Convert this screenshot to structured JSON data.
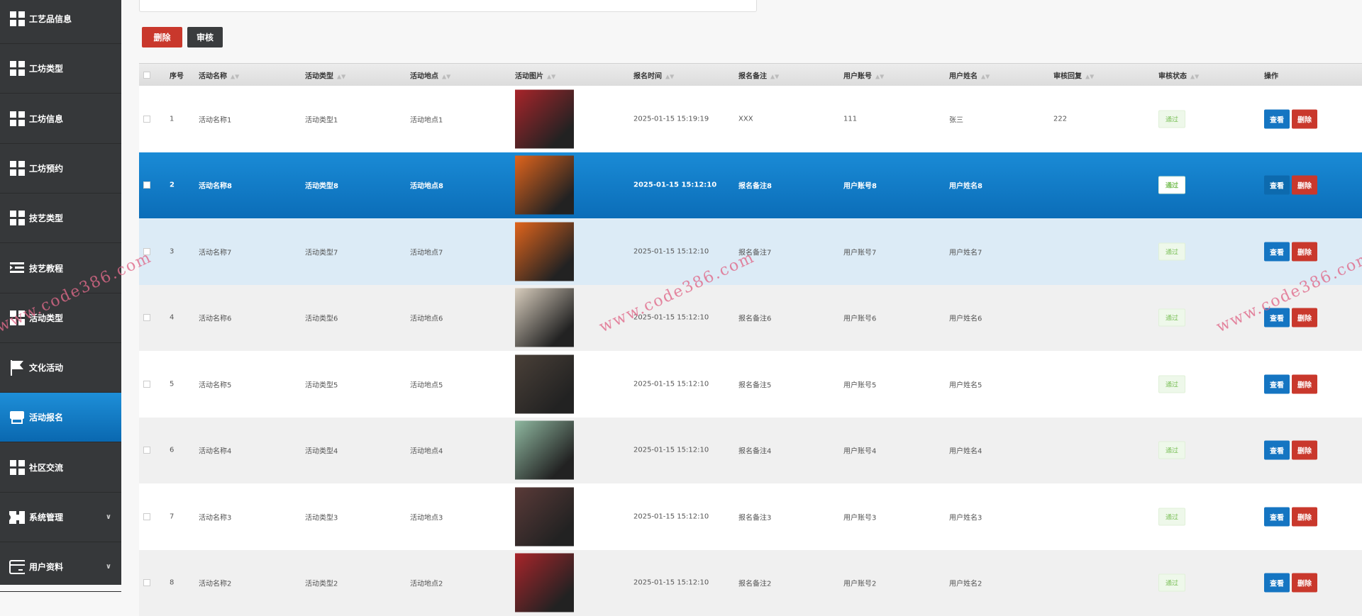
{
  "sidebar": {
    "items": [
      {
        "label": "工艺品信息",
        "icon": "grid"
      },
      {
        "label": "工坊类型",
        "icon": "grid"
      },
      {
        "label": "工坊信息",
        "icon": "grid"
      },
      {
        "label": "工坊预约",
        "icon": "grid"
      },
      {
        "label": "技艺类型",
        "icon": "grid"
      },
      {
        "label": "技艺教程",
        "icon": "list-indent"
      },
      {
        "label": "活动类型",
        "icon": "grid"
      },
      {
        "label": "文化活动",
        "icon": "flag"
      },
      {
        "label": "活动报名",
        "icon": "store",
        "active": true
      },
      {
        "label": "社区交流",
        "icon": "grid"
      },
      {
        "label": "系统管理",
        "icon": "ticket",
        "expandable": true
      },
      {
        "label": "用户资料",
        "icon": "card",
        "expandable": true
      }
    ]
  },
  "toolbar": {
    "delete_label": "删除",
    "review_label": "审核",
    "delete_color": "#c9382c",
    "review_color": "#3a3c3e"
  },
  "table": {
    "headers": [
      "序号",
      "活动名称",
      "活动类型",
      "活动地点",
      "活动图片",
      "报名时间",
      "报名备注",
      "用户账号",
      "用户姓名",
      "审核回复",
      "审核状态",
      "操作"
    ],
    "actions": {
      "view": "查看",
      "delete": "删除"
    },
    "rows": [
      {
        "no": "1",
        "name": "活动名称1",
        "type": "活动类型1",
        "place": "活动地点1",
        "img": "#a8242a",
        "time": "2025-01-15 15:19:19",
        "note": "XXX",
        "account": "111",
        "user": "张三",
        "reply": "222",
        "status": "通过"
      },
      {
        "no": "2",
        "name": "活动名称8",
        "type": "活动类型8",
        "place": "活动地点8",
        "img": "#e0641c",
        "time": "2025-01-15 15:12:10",
        "note": "报名备注8",
        "account": "用户账号8",
        "user": "用户姓名8",
        "reply": "",
        "status": "通过",
        "selected": true
      },
      {
        "no": "3",
        "name": "活动名称7",
        "type": "活动类型7",
        "place": "活动地点7",
        "img": "#e0641c",
        "time": "2025-01-15 15:12:10",
        "note": "报名备注7",
        "account": "用户账号7",
        "user": "用户姓名7",
        "reply": "",
        "status": "通过"
      },
      {
        "no": "4",
        "name": "活动名称6",
        "type": "活动类型6",
        "place": "活动地点6",
        "img": "#d8cdbd",
        "time": "2025-01-15 15:12:10",
        "note": "报名备注6",
        "account": "用户账号6",
        "user": "用户姓名6",
        "reply": "",
        "status": "通过"
      },
      {
        "no": "5",
        "name": "活动名称5",
        "type": "活动类型5",
        "place": "活动地点5",
        "img": "#4a4038",
        "time": "2025-01-15 15:12:10",
        "note": "报名备注5",
        "account": "用户账号5",
        "user": "用户姓名5",
        "reply": "",
        "status": "通过"
      },
      {
        "no": "6",
        "name": "活动名称4",
        "type": "活动类型4",
        "place": "活动地点4",
        "img": "#8fb8a0",
        "time": "2025-01-15 15:12:10",
        "note": "报名备注4",
        "account": "用户账号4",
        "user": "用户姓名4",
        "reply": "",
        "status": "通过"
      },
      {
        "no": "7",
        "name": "活动名称3",
        "type": "活动类型3",
        "place": "活动地点3",
        "img": "#5a3a38",
        "time": "2025-01-15 15:12:10",
        "note": "报名备注3",
        "account": "用户账号3",
        "user": "用户姓名3",
        "reply": "",
        "status": "通过"
      },
      {
        "no": "8",
        "name": "活动名称2",
        "type": "活动类型2",
        "place": "活动地点2",
        "img": "#a8242a",
        "time": "2025-01-15 15:12:10",
        "note": "报名备注2",
        "account": "用户账号2",
        "user": "用户姓名2",
        "reply": "",
        "status": "通过"
      }
    ]
  },
  "watermark": "www.code386.com"
}
